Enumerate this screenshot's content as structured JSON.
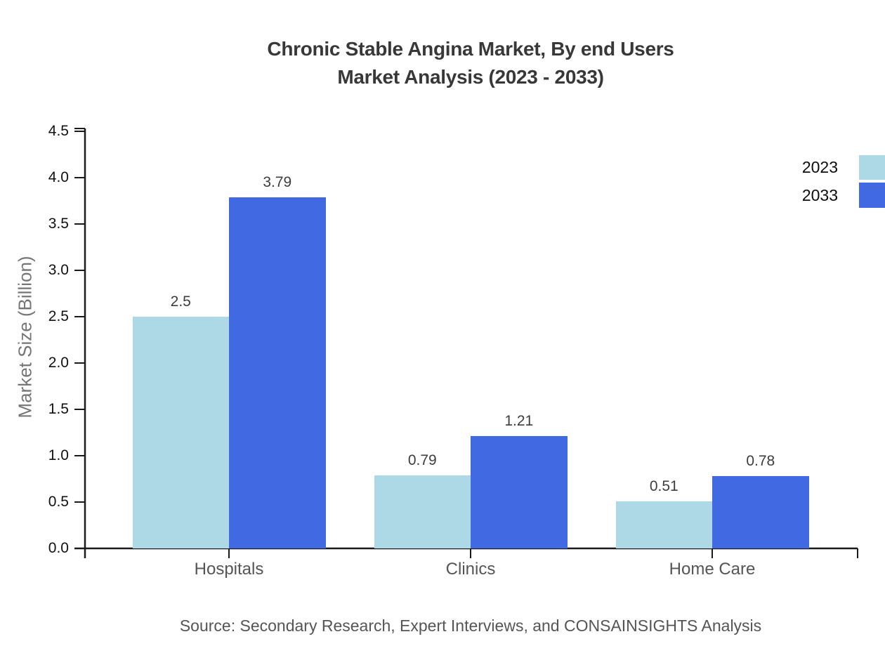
{
  "title": {
    "line1": "Chronic Stable Angina Market, By end Users",
    "line2": "Market Analysis (2023 - 2033)"
  },
  "source": "Source: Secondary Research, Expert Interviews, and CONSAINSIGHTS Analysis",
  "chart_data": {
    "type": "bar",
    "title": "Chronic Stable Angina Market, By end Users Market Analysis (2023 - 2033)",
    "categories": [
      "Hospitals",
      "Clinics",
      "Home Care"
    ],
    "series": [
      {
        "name": "2023",
        "color": "#add8e6",
        "values": [
          2.5,
          0.79,
          0.51
        ],
        "value_labels": [
          "2.5",
          "0.79",
          "0.51"
        ]
      },
      {
        "name": "2033",
        "color": "#4169e1",
        "values": [
          3.79,
          1.21,
          0.78
        ],
        "value_labels": [
          "3.79",
          "1.21",
          "0.78"
        ]
      }
    ],
    "xlabel": "",
    "ylabel": "Market Size (Billion)",
    "ylim": [
      0,
      4.5
    ],
    "ytick_step": 0.5,
    "yticks": [
      "0.0",
      "0.5",
      "1.0",
      "1.5",
      "2.0",
      "2.5",
      "3.0",
      "3.5",
      "4.0",
      "4.5"
    ],
    "grid": false,
    "legend": {
      "position": "right-edge-cut",
      "entries": [
        "2023",
        "2033"
      ]
    },
    "axis_color": "#1a1a1a"
  }
}
